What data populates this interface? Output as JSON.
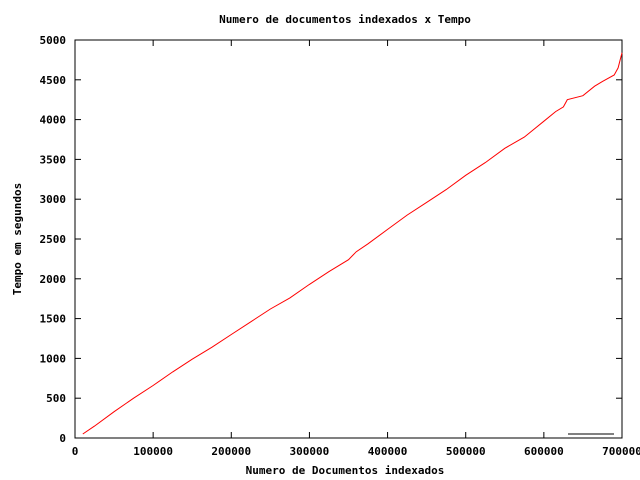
{
  "chart_data": {
    "type": "line",
    "title": "Numero de documentos indexados x Tempo",
    "xlabel": "Numero de Documentos indexados",
    "ylabel": "Tempo em segundos",
    "xlim": [
      0,
      700000
    ],
    "ylim": [
      0,
      5000
    ],
    "x_ticks": [
      0,
      100000,
      200000,
      300000,
      400000,
      500000,
      600000,
      700000
    ],
    "x_tick_labels": [
      "0",
      "100000",
      "200000",
      "300000",
      "400000",
      "500000",
      "600000",
      "700000"
    ],
    "y_ticks": [
      0,
      500,
      1000,
      1500,
      2000,
      2500,
      3000,
      3500,
      4000,
      4500,
      5000
    ],
    "y_tick_labels": [
      "0",
      "500",
      "1000",
      "1500",
      "2000",
      "2500",
      "3000",
      "3500",
      "4000",
      "4500",
      "5000"
    ],
    "grid": false,
    "legend": "bottom-right",
    "colors": {
      "series": "#ff0000",
      "axes": "#000000",
      "legend_sample": "#000000"
    },
    "series": [
      {
        "color": "#ff0000",
        "x": [
          10000,
          25000,
          50000,
          75000,
          100000,
          125000,
          150000,
          175000,
          200000,
          225000,
          250000,
          275000,
          300000,
          325000,
          350000,
          360000,
          375000,
          400000,
          425000,
          450000,
          475000,
          500000,
          525000,
          550000,
          575000,
          600000,
          615000,
          625000,
          630000,
          650000,
          665000,
          675000,
          690000,
          695000,
          700000
        ],
        "y": [
          50,
          150,
          330,
          500,
          660,
          830,
          990,
          1140,
          1300,
          1460,
          1620,
          1760,
          1930,
          2090,
          2240,
          2340,
          2440,
          2620,
          2800,
          2960,
          3120,
          3300,
          3460,
          3640,
          3780,
          3980,
          4100,
          4160,
          4250,
          4300,
          4420,
          4480,
          4560,
          4650,
          4840
        ]
      }
    ]
  }
}
